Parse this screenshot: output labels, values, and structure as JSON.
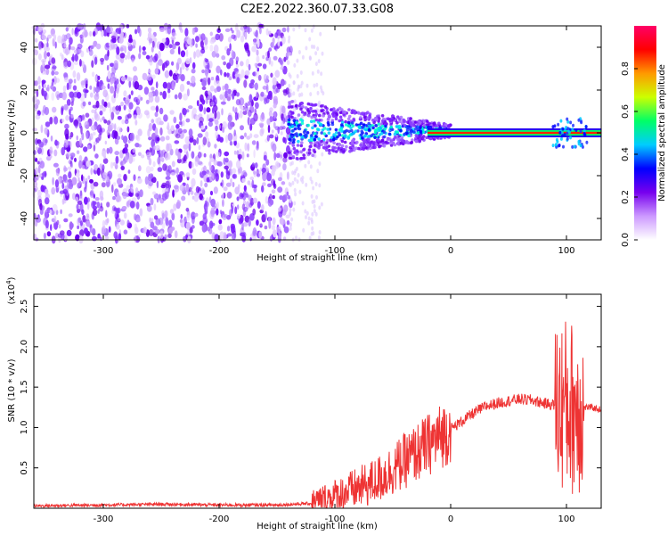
{
  "title": "C2E2.2022.360.07.33.G08",
  "chart_data": [
    {
      "type": "heatmap",
      "xlabel": "Height of straight line (km)",
      "ylabel": "Frequency (Hz)",
      "xlim": [
        -360,
        130
      ],
      "ylim": [
        -50,
        50
      ],
      "xticks": [
        -300,
        -200,
        -100,
        0,
        100
      ],
      "yticks": [
        -40,
        -20,
        0,
        20,
        40
      ],
      "colorbar": {
        "label": "Normalized spectral amplitude",
        "range": [
          0.0,
          1.0
        ],
        "ticks": [
          "0.0",
          "0.2",
          "0.4",
          "0.6",
          "0.8"
        ],
        "colors": [
          "#ffffff",
          "#cc99ff",
          "#7700ee",
          "#0000ff",
          "#00ccff",
          "#00ff66",
          "#ccff00",
          "#ff9900",
          "#ff0000",
          "#ff0066"
        ]
      },
      "features": [
        {
          "x_range": [
            -360,
            -140
          ],
          "description": "noise"
        },
        {
          "x_range": [
            -140,
            0
          ],
          "description": "signal emerging"
        },
        {
          "x_range": [
            0,
            130
          ],
          "description": "coherent carrier near 0 Hz"
        }
      ]
    },
    {
      "type": "line",
      "xlabel": "Height of straight line (km)",
      "ylabel": "SNR (10 * v/v)",
      "yscale_label": "(x10",
      "yscale_exp": "4",
      "xlim": [
        -360,
        130
      ],
      "ylim": [
        0,
        2.65
      ],
      "xticks": [
        -300,
        -200,
        -100,
        0,
        100
      ],
      "yticks": [
        "0.5",
        "1.0",
        "1.5",
        "2.0",
        "2.5"
      ],
      "color": "#ee3333",
      "series": [
        {
          "x": [
            -360,
            -300,
            -250,
            -200,
            -150,
            -120,
            -100,
            -90,
            -80,
            -70,
            -60,
            -50,
            -40,
            -30,
            -20,
            -10,
            0,
            10,
            20,
            30,
            40,
            50,
            60,
            70,
            80,
            90,
            100,
            105,
            110,
            115,
            120,
            130
          ],
          "y": [
            0.03,
            0.04,
            0.05,
            0.04,
            0.04,
            0.06,
            0.15,
            0.2,
            0.25,
            0.3,
            0.38,
            0.48,
            0.58,
            0.68,
            0.78,
            0.88,
            0.98,
            1.08,
            1.18,
            1.26,
            1.3,
            1.33,
            1.35,
            1.34,
            1.3,
            1.28,
            1.28,
            1.25,
            1.25,
            1.25,
            1.25,
            1.22
          ]
        }
      ]
    }
  ]
}
